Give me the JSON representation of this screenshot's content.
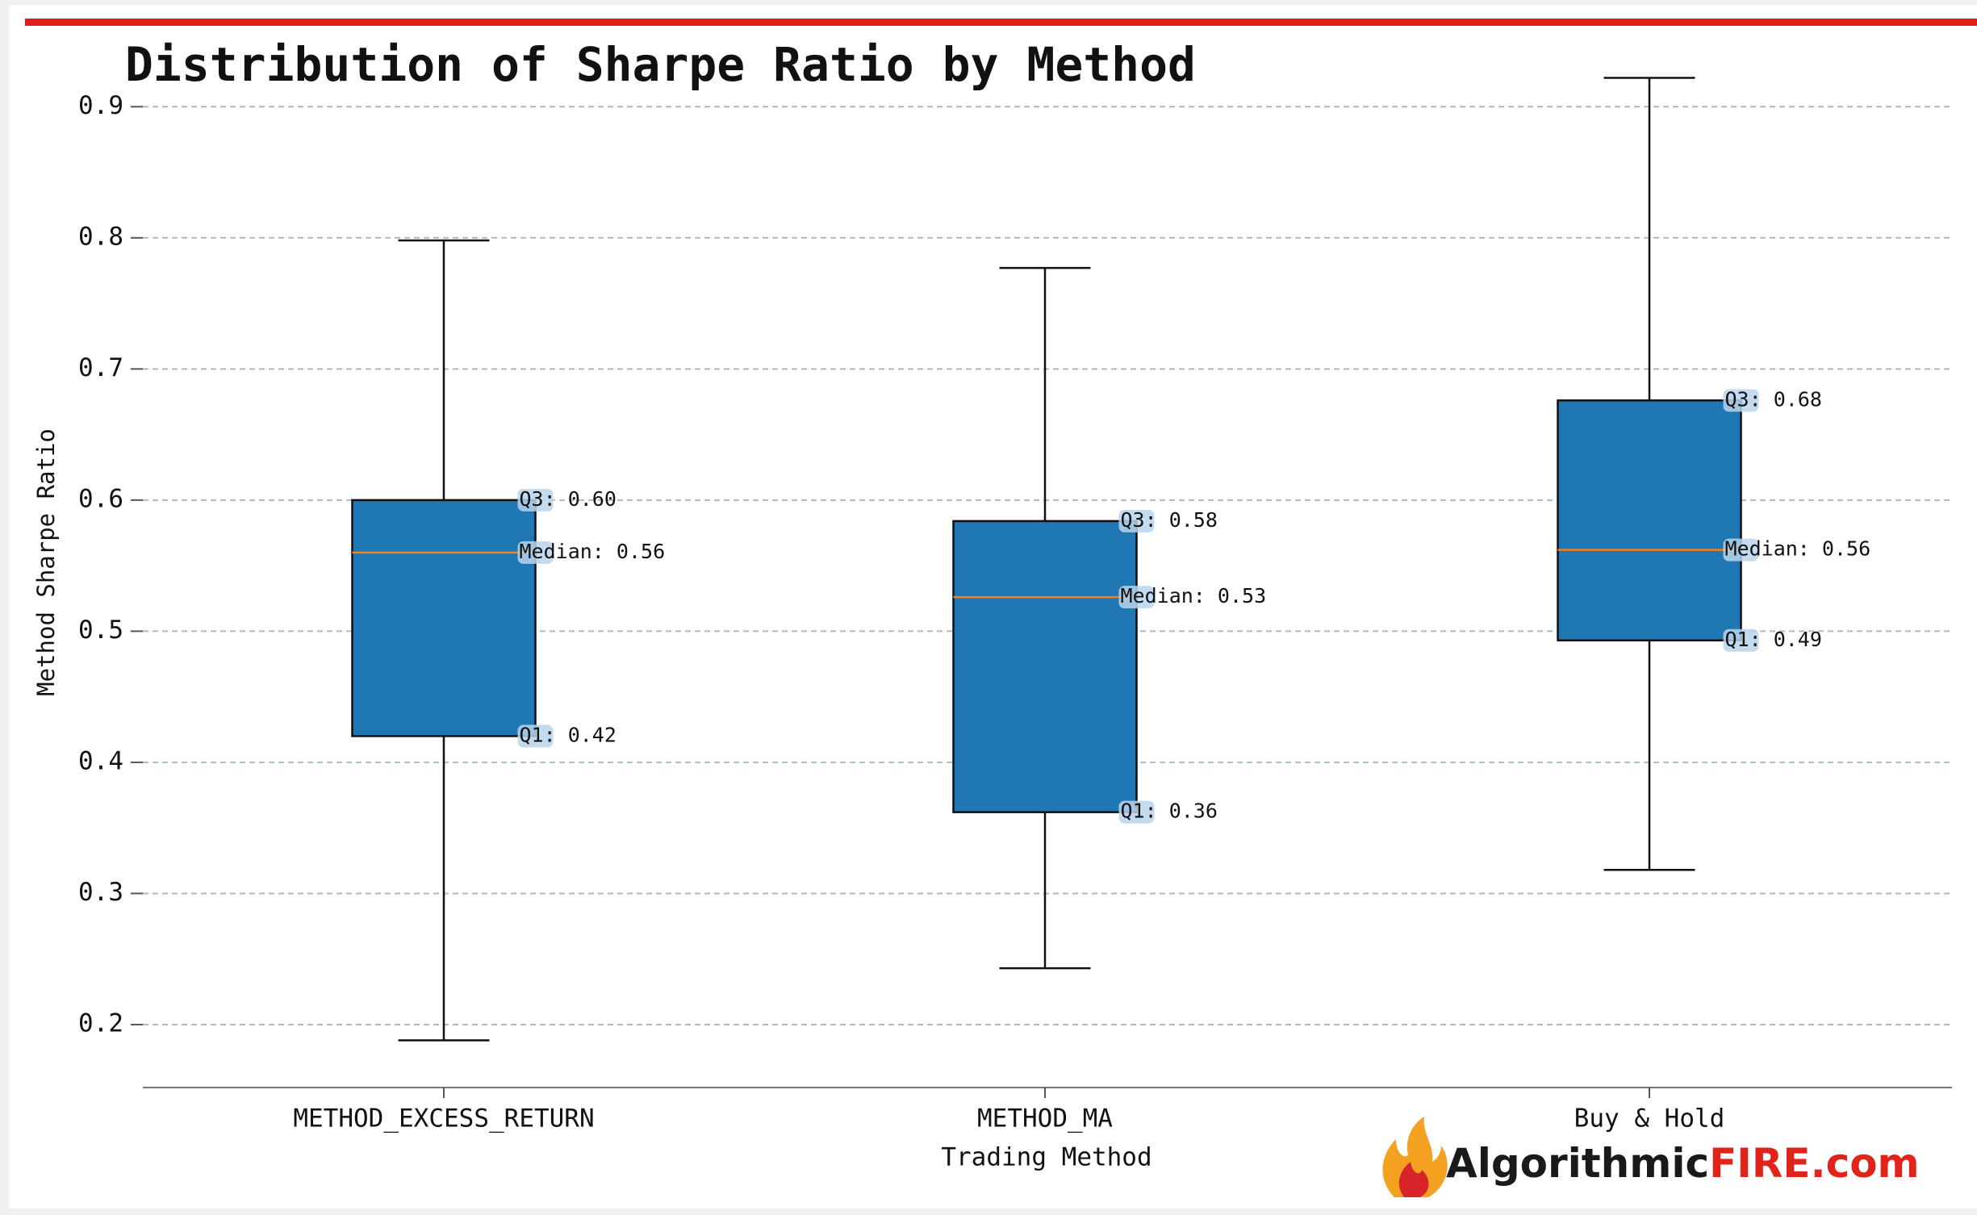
{
  "chart_data": {
    "type": "box",
    "title": "Distribution of Sharpe Ratio by Method",
    "x_label": "Trading Method",
    "y_label": "Method Sharpe Ratio",
    "categories": [
      "METHOD_EXCESS_RETURN",
      "METHOD_MA",
      "Buy & Hold"
    ],
    "whisker_low": [
      0.188,
      0.243,
      0.318
    ],
    "q1": [
      0.42,
      0.362,
      0.493
    ],
    "median": [
      0.56,
      0.526,
      0.562
    ],
    "q3": [
      0.6,
      0.584,
      0.676
    ],
    "whisker_high": [
      0.798,
      0.777,
      0.922
    ],
    "value_labels": {
      "q1": [
        "Q1: 0.42",
        "Q1: 0.36",
        "Q1: 0.49"
      ],
      "median": [
        "Median: 0.56",
        "Median: 0.53",
        "Median: 0.56"
      ],
      "q3": [
        "Q3: 0.60",
        "Q3: 0.58",
        "Q3: 0.68"
      ]
    },
    "color": "#1f77b4",
    "median_color": "#ff7f0e",
    "ylim": [
      0.152,
      0.958
    ],
    "yticks": [
      0.2,
      0.3,
      0.4,
      0.5,
      0.6,
      0.7,
      0.8,
      0.9
    ],
    "grid": true,
    "watermark": {
      "dark": "Algorithmic",
      "red": "FIRE.com"
    }
  }
}
